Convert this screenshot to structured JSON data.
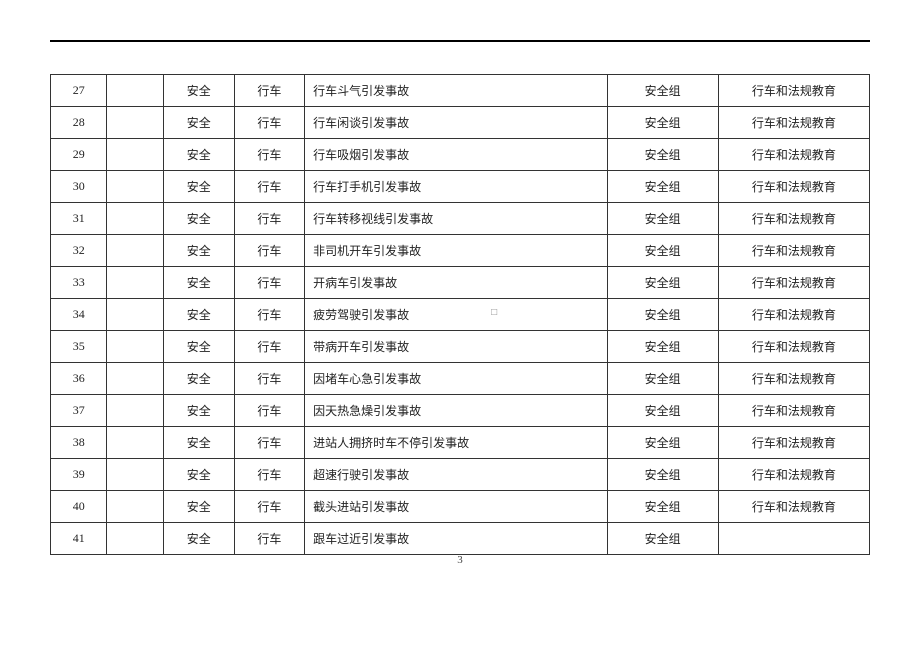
{
  "page_number": "3",
  "columns": {
    "num": "",
    "blank": "",
    "cat": "",
    "sub": "",
    "desc": "",
    "group": "",
    "edu": ""
  },
  "rows": [
    {
      "num": "27",
      "blank": "",
      "cat": "安全",
      "sub": "行车",
      "desc": "行车斗气引发事故",
      "group": "安全组",
      "edu": "行车和法规教育"
    },
    {
      "num": "28",
      "blank": "",
      "cat": "安全",
      "sub": "行车",
      "desc": "行车闲谈引发事故",
      "group": "安全组",
      "edu": "行车和法规教育"
    },
    {
      "num": "29",
      "blank": "",
      "cat": "安全",
      "sub": "行车",
      "desc": "行车吸烟引发事故",
      "group": "安全组",
      "edu": "行车和法规教育"
    },
    {
      "num": "30",
      "blank": "",
      "cat": "安全",
      "sub": "行车",
      "desc": "行车打手机引发事故",
      "group": "安全组",
      "edu": "行车和法规教育"
    },
    {
      "num": "31",
      "blank": "",
      "cat": "安全",
      "sub": "行车",
      "desc": "行车转移视线引发事故",
      "group": "安全组",
      "edu": "行车和法规教育"
    },
    {
      "num": "32",
      "blank": "",
      "cat": "安全",
      "sub": "行车",
      "desc": "非司机开车引发事故",
      "group": "安全组",
      "edu": "行车和法规教育"
    },
    {
      "num": "33",
      "blank": "",
      "cat": "安全",
      "sub": "行车",
      "desc": "开病车引发事故",
      "group": "安全组",
      "edu": "行车和法规教育"
    },
    {
      "num": "34",
      "blank": "",
      "cat": "安全",
      "sub": "行车",
      "desc": "疲劳驾驶引发事故",
      "group": "安全组",
      "edu": "行车和法规教育"
    },
    {
      "num": "35",
      "blank": "",
      "cat": "安全",
      "sub": "行车",
      "desc": "带病开车引发事故",
      "group": "安全组",
      "edu": "行车和法规教育"
    },
    {
      "num": "36",
      "blank": "",
      "cat": "安全",
      "sub": "行车",
      "desc": "因堵车心急引发事故",
      "group": "安全组",
      "edu": "行车和法规教育"
    },
    {
      "num": "37",
      "blank": "",
      "cat": "安全",
      "sub": "行车",
      "desc": "因天热急燥引发事故",
      "group": "安全组",
      "edu": "行车和法规教育"
    },
    {
      "num": "38",
      "blank": "",
      "cat": "安全",
      "sub": "行车",
      "desc": "进站人拥挤时车不停引发事故",
      "group": "安全组",
      "edu": "行车和法规教育"
    },
    {
      "num": "39",
      "blank": "",
      "cat": "安全",
      "sub": "行车",
      "desc": "超速行驶引发事故",
      "group": "安全组",
      "edu": "行车和法规教育"
    },
    {
      "num": "40",
      "blank": "",
      "cat": "安全",
      "sub": "行车",
      "desc": "截头进站引发事故",
      "group": "安全组",
      "edu": "行车和法规教育"
    },
    {
      "num": "41",
      "blank": "",
      "cat": "安全",
      "sub": "行车",
      "desc": "跟车过近引发事故",
      "group": "安全组",
      "edu": ""
    }
  ],
  "dot_marker_row_index": 7,
  "dot_marker_symbol": "□"
}
